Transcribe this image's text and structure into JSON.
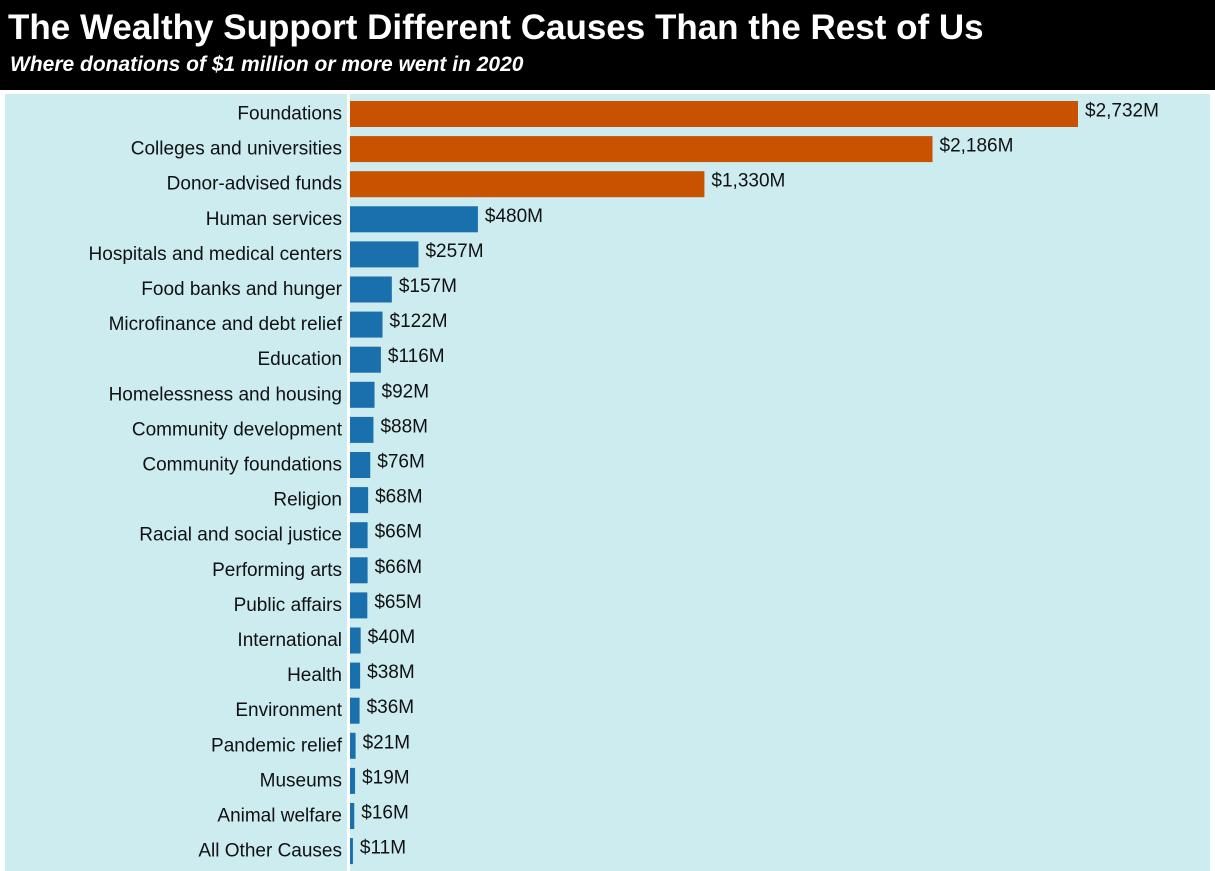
{
  "header": {
    "title": "The Wealthy Support Different Causes Than the Rest of Us",
    "subtitle": "Where donations of $1 million or more went in 2020"
  },
  "colors": {
    "background": "#ccecf0",
    "title_bar": "#000000",
    "highlight": "#c95200",
    "standard": "#1a6fad"
  },
  "chart_data": {
    "type": "bar",
    "orientation": "horizontal",
    "title": "The Wealthy Support Different Causes Than the Rest of Us",
    "subtitle": "Where donations of $1 million or more went in 2020",
    "xlabel": "",
    "ylabel": "",
    "unit": "$M",
    "grid": false,
    "legend": "none",
    "categories": [
      "Foundations",
      "Colleges and universities",
      "Donor-advised funds",
      "Human services",
      "Hospitals and medical centers",
      "Food banks and hunger",
      "Microfinance and debt relief",
      "Education",
      "Homelessness and housing",
      "Community development",
      "Community foundations",
      "Religion",
      "Racial and social justice",
      "Performing arts",
      "Public affairs",
      "International",
      "Health",
      "Environment",
      "Pandemic relief",
      "Museums",
      "Animal welfare",
      "All Other Causes"
    ],
    "values": [
      2732,
      2186,
      1330,
      480,
      257,
      157,
      122,
      116,
      92,
      88,
      76,
      68,
      66,
      66,
      65,
      40,
      38,
      36,
      21,
      19,
      16,
      11
    ],
    "value_labels": [
      "$2,732M",
      "$2,186M",
      "$1,330M",
      "$480M",
      "$257M",
      "$157M",
      "$122M",
      "$116M",
      "$92M",
      "$88M",
      "$76M",
      "$68M",
      "$66M",
      "$66M",
      "$65M",
      "$40M",
      "$38M",
      "$36M",
      "$21M",
      "$19M",
      "$16M",
      "$11M"
    ],
    "highlighted": [
      true,
      true,
      true,
      false,
      false,
      false,
      false,
      false,
      false,
      false,
      false,
      false,
      false,
      false,
      false,
      false,
      false,
      false,
      false,
      false,
      false,
      false
    ],
    "xlim": [
      0,
      2732
    ]
  }
}
